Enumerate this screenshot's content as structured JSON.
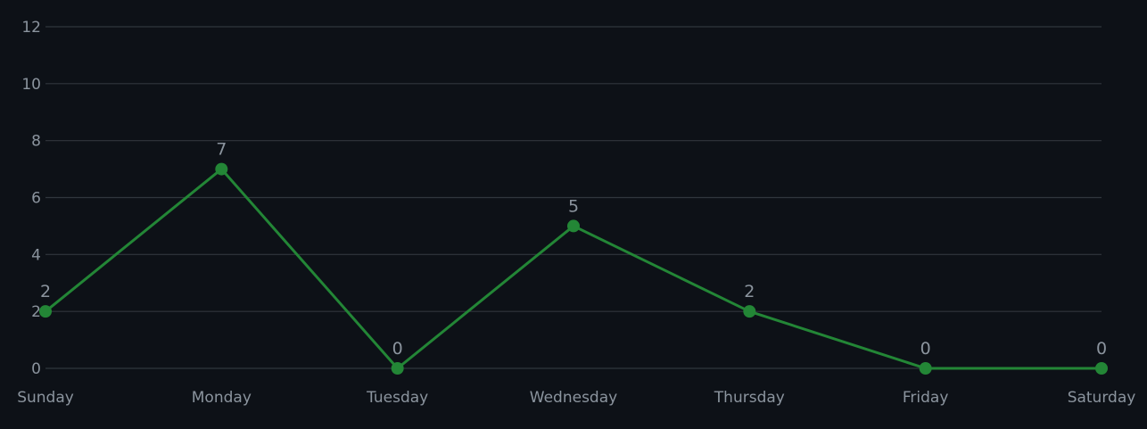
{
  "chart_data": {
    "type": "line",
    "categories": [
      "Sunday",
      "Monday",
      "Tuesday",
      "Wednesday",
      "Thursday",
      "Friday",
      "Saturday"
    ],
    "series": [
      {
        "values": [
          2,
          7,
          0,
          5,
          2,
          0,
          0
        ]
      }
    ],
    "data_labels": [
      "2",
      "7",
      "0",
      "5",
      "2",
      "0",
      "0"
    ],
    "ylim": [
      0,
      12
    ],
    "y_ticks": [
      0,
      2,
      4,
      6,
      8,
      10,
      12
    ],
    "grid": true,
    "colors": {
      "background": "#0d1117",
      "line": "#238636",
      "grid": "#30363d",
      "text": "#8b949e"
    }
  }
}
